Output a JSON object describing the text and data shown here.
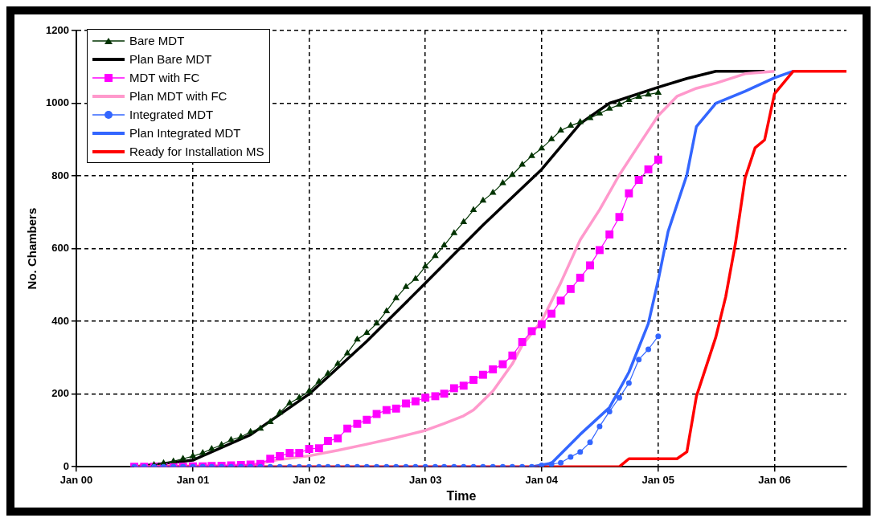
{
  "chart_data": {
    "type": "line",
    "xlabel": "Time",
    "ylabel": "No. Chambers",
    "xlim": [
      "2000-01",
      "2006-08-15"
    ],
    "xticks": [
      {
        "value": "2000-01",
        "label": "Jan 00"
      },
      {
        "value": "2001-01",
        "label": "Jan 01"
      },
      {
        "value": "2002-01",
        "label": "Jan 02"
      },
      {
        "value": "2003-01",
        "label": "Jan 03"
      },
      {
        "value": "2004-01",
        "label": "Jan 04"
      },
      {
        "value": "2005-01",
        "label": "Jan 05"
      },
      {
        "value": "2006-01",
        "label": "Jan 06"
      }
    ],
    "ylim": [
      0,
      1200
    ],
    "yticks": [
      0,
      200,
      400,
      600,
      800,
      1000,
      1200
    ],
    "grid": true,
    "legend": "top left",
    "series": [
      {
        "name": "Bare MDT",
        "color": "#003300",
        "marker": "triangle",
        "x": [
          "2000-09",
          "2000-10",
          "2000-11",
          "2000-12",
          "2001-01",
          "2001-02",
          "2001-03",
          "2001-04",
          "2001-05",
          "2001-06",
          "2001-07",
          "2001-08",
          "2001-09",
          "2001-10",
          "2001-11",
          "2001-12",
          "2002-01",
          "2002-02",
          "2002-03",
          "2002-04",
          "2002-05",
          "2002-06",
          "2002-07",
          "2002-08",
          "2002-09",
          "2002-10",
          "2002-11",
          "2002-12",
          "2003-01",
          "2003-02",
          "2003-03",
          "2003-04",
          "2003-05",
          "2003-06",
          "2003-07",
          "2003-08",
          "2003-09",
          "2003-10",
          "2003-11",
          "2003-12",
          "2004-01",
          "2004-02",
          "2004-03",
          "2004-04",
          "2004-05",
          "2004-06",
          "2004-07",
          "2004-08",
          "2004-09",
          "2004-10",
          "2004-11",
          "2004-12",
          "2005-01"
        ],
        "values": [
          5,
          10,
          15,
          22,
          29,
          38,
          49,
          60,
          74,
          82,
          96,
          105,
          123,
          149,
          175,
          190,
          208,
          234,
          256,
          283,
          312,
          350,
          368,
          394,
          428,
          464,
          495,
          517,
          551,
          580,
          609,
          643,
          673,
          706,
          732,
          754,
          780,
          803,
          831,
          855,
          876,
          901,
          925,
          938,
          948,
          959,
          972,
          985,
          996,
          1009,
          1018,
          1024,
          1029
        ]
      },
      {
        "name": "Plan Bare MDT",
        "color": "#000000",
        "type": "line",
        "x": [
          "2000-07",
          "2001-01",
          "2001-07",
          "2002-01",
          "2002-07",
          "2003-01",
          "2003-07",
          "2004-01",
          "2004-05",
          "2004-08",
          "2005-01",
          "2005-04",
          "2005-07",
          "2005-12"
        ],
        "values": [
          0,
          18,
          88,
          200,
          345,
          505,
          665,
          818,
          944,
          1000,
          1044,
          1068,
          1088,
          1088
        ]
      },
      {
        "name": "MDT with FC",
        "color": "#ff00ff",
        "marker": "square",
        "x": [
          "2000-07",
          "2000-08",
          "2000-09",
          "2000-10",
          "2000-11",
          "2000-12",
          "2001-01",
          "2001-02",
          "2001-03",
          "2001-04",
          "2001-05",
          "2001-06",
          "2001-07",
          "2001-08",
          "2001-09",
          "2001-10",
          "2001-11",
          "2001-12",
          "2002-01",
          "2002-02",
          "2002-03",
          "2002-04",
          "2002-05",
          "2002-06",
          "2002-07",
          "2002-08",
          "2002-09",
          "2002-10",
          "2002-11",
          "2002-12",
          "2003-01",
          "2003-02",
          "2003-03",
          "2003-04",
          "2003-05",
          "2003-06",
          "2003-07",
          "2003-08",
          "2003-09",
          "2003-10",
          "2003-11",
          "2003-12",
          "2004-01",
          "2004-02",
          "2004-03",
          "2004-04",
          "2004-05",
          "2004-06",
          "2004-07",
          "2004-08",
          "2004-09",
          "2004-10",
          "2004-11",
          "2004-12",
          "2005-01"
        ],
        "values": [
          0,
          0,
          0,
          0,
          0,
          0,
          1,
          1,
          2,
          3,
          4,
          5,
          6,
          8,
          22,
          29,
          38,
          38,
          49,
          51,
          71,
          78,
          105,
          118,
          129,
          145,
          156,
          160,
          174,
          180,
          190,
          194,
          201,
          216,
          223,
          239,
          253,
          268,
          282,
          306,
          343,
          373,
          392,
          421,
          457,
          489,
          520,
          554,
          596,
          639,
          687,
          752,
          789,
          818,
          845
        ]
      },
      {
        "name": "Plan MDT with FC",
        "color": "#ff99cc",
        "type": "line",
        "x": [
          "2000-07",
          "2001-07",
          "2001-10",
          "2002-01",
          "2002-04",
          "2002-07",
          "2002-10",
          "2003-01",
          "2003-03",
          "2003-05",
          "2003-06",
          "2003-08",
          "2003-10",
          "2003-11",
          "2004-01",
          "2004-03",
          "2004-05",
          "2004-07",
          "2004-09",
          "2004-11",
          "2005-01",
          "2005-03",
          "2005-05",
          "2005-07",
          "2005-10",
          "2006-01"
        ],
        "values": [
          0,
          5,
          20,
          30,
          45,
          62,
          80,
          100,
          119,
          140,
          156,
          208,
          283,
          334,
          401,
          506,
          624,
          707,
          803,
          885,
          966,
          1019,
          1041,
          1055,
          1081,
          1088
        ]
      },
      {
        "name": "Integrated MDT",
        "color": "#3366ff",
        "marker": "circle",
        "x": [
          "2000-07",
          "2000-08",
          "2000-09",
          "2000-10",
          "2000-11",
          "2000-12",
          "2001-01",
          "2001-02",
          "2001-03",
          "2001-04",
          "2001-05",
          "2001-06",
          "2001-07",
          "2001-08",
          "2001-09",
          "2001-10",
          "2001-11",
          "2001-12",
          "2002-01",
          "2002-02",
          "2002-03",
          "2002-04",
          "2002-05",
          "2002-06",
          "2002-07",
          "2002-08",
          "2002-09",
          "2002-10",
          "2002-11",
          "2002-12",
          "2003-01",
          "2003-02",
          "2003-03",
          "2003-04",
          "2003-05",
          "2003-06",
          "2003-07",
          "2003-08",
          "2003-09",
          "2003-10",
          "2003-11",
          "2003-12",
          "2004-01",
          "2004-02",
          "2004-03",
          "2004-04",
          "2004-05",
          "2004-06",
          "2004-07",
          "2004-08",
          "2004-09",
          "2004-10",
          "2004-11",
          "2004-12",
          "2005-01"
        ],
        "values": [
          0,
          0,
          0,
          0,
          0,
          0,
          0,
          0,
          0,
          0,
          0,
          0,
          0,
          0,
          0,
          0,
          0,
          0,
          0,
          0,
          0,
          0,
          0,
          0,
          0,
          0,
          0,
          0,
          0,
          0,
          0,
          0,
          0,
          0,
          0,
          0,
          0,
          0,
          0,
          0,
          0,
          0,
          4,
          7,
          11,
          27,
          41,
          67,
          111,
          152,
          190,
          230,
          295,
          323,
          359
        ]
      },
      {
        "name": "Plan Integrated MDT",
        "color": "#3366ff",
        "type": "line",
        "x": [
          "2003-12",
          "2004-02",
          "2004-05",
          "2004-08",
          "2004-10",
          "2004-12",
          "2005-01",
          "2005-02",
          "2005-04",
          "2005-05",
          "2005-07",
          "2005-10",
          "2006-01",
          "2006-03"
        ],
        "values": [
          0,
          10,
          89,
          163,
          260,
          394,
          513,
          647,
          803,
          936,
          1000,
          1033,
          1070,
          1088
        ]
      },
      {
        "name": "Ready for Installation MS",
        "color": "#ff0000",
        "type": "line",
        "x": [
          "2000-07",
          "2004-09",
          "2004-10",
          "2005-03",
          "2005-04",
          "2005-05",
          "2005-07",
          "2005-08",
          "2005-09",
          "2005-10",
          "2005-11",
          "2005-12",
          "2006-01",
          "2006-03",
          "2006-08-15"
        ],
        "values": [
          0,
          0,
          22,
          22,
          41,
          194,
          357,
          468,
          617,
          795,
          877,
          899,
          1026,
          1088,
          1088
        ]
      }
    ]
  }
}
